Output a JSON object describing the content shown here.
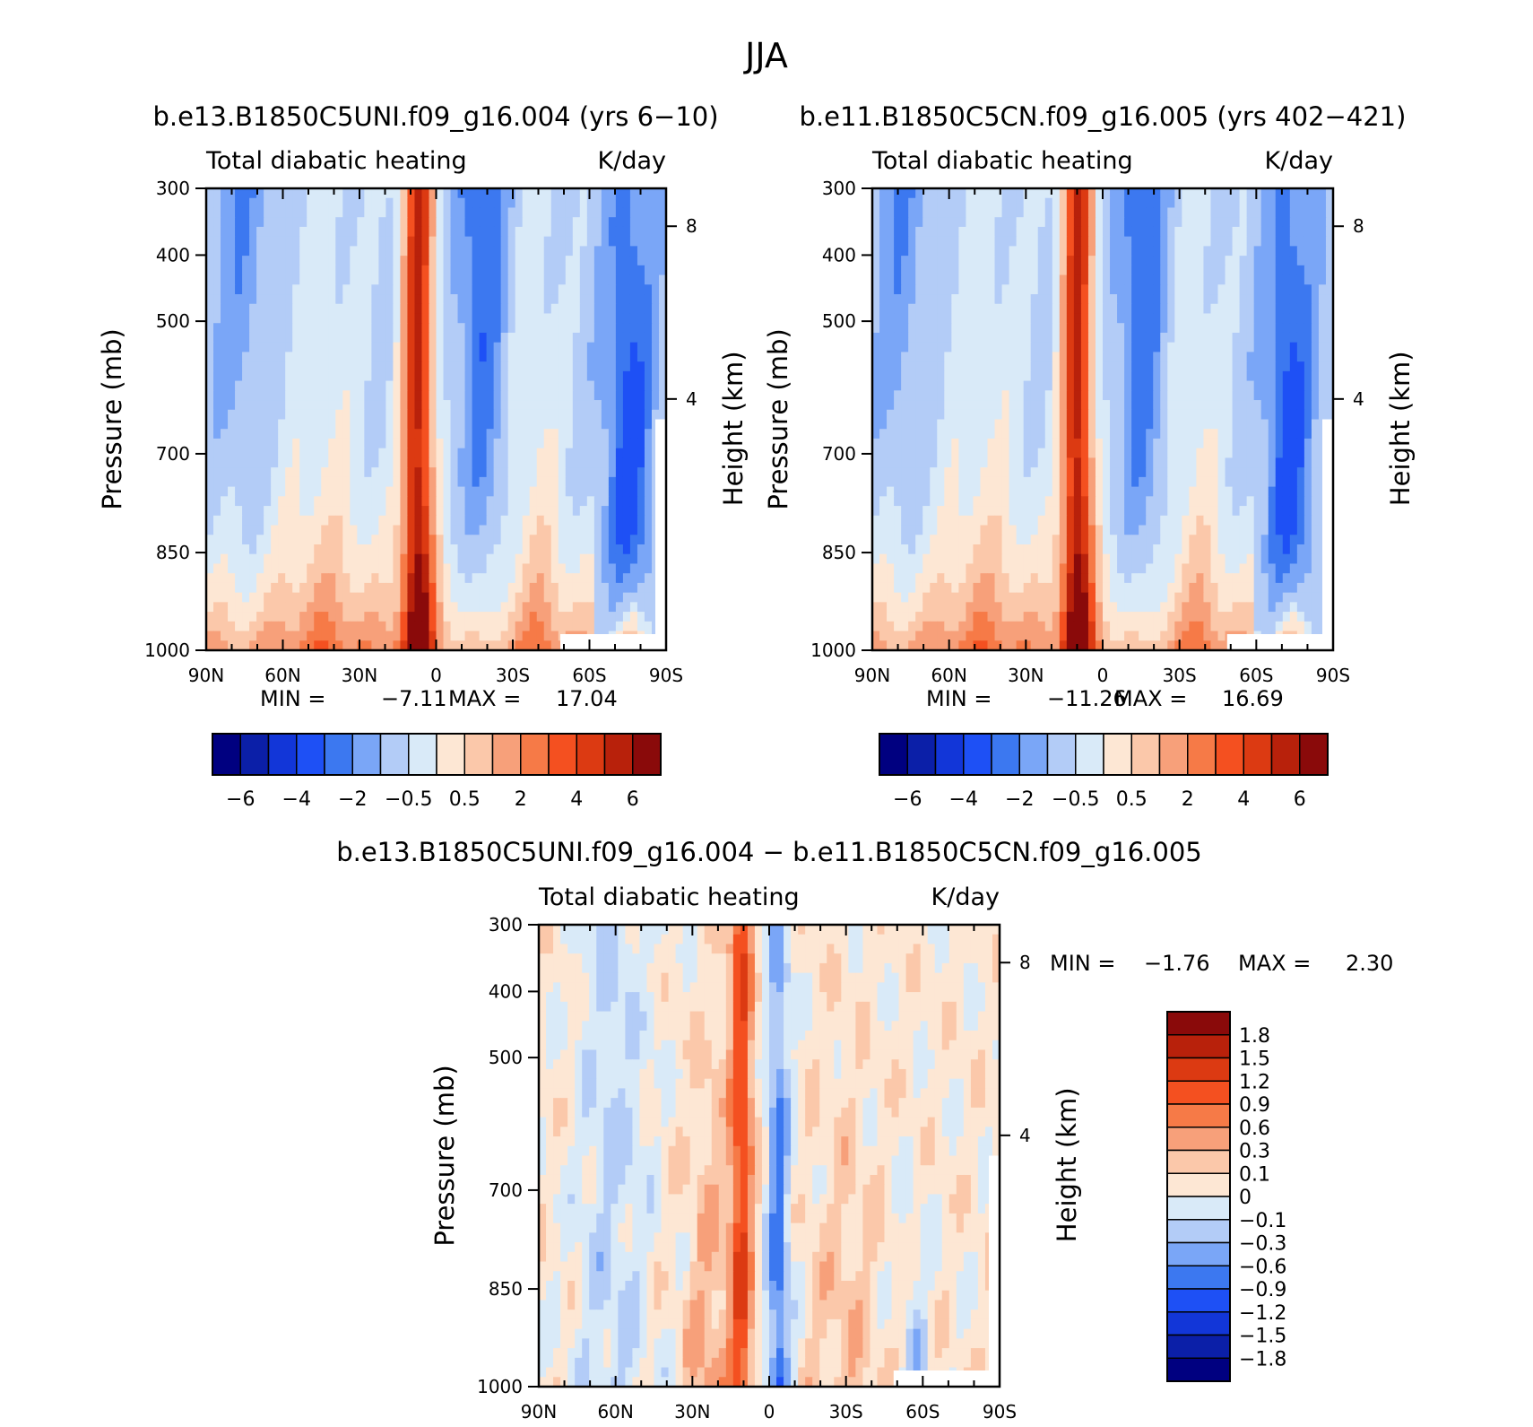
{
  "figure": {
    "title": "JJA"
  },
  "colorbar_top": {
    "labels": [
      "−6",
      "−4",
      "−2",
      "−0.5",
      "0.5",
      "2",
      "4",
      "6"
    ],
    "colors": [
      "#000080",
      "#0B1FA8",
      "#1236D8",
      "#1E50F5",
      "#3C78F0",
      "#7AA6F7",
      "#B3CCF7",
      "#D9EAF8",
      "#FDE7D4",
      "#FBC8AA",
      "#F7A07A",
      "#F67A47",
      "#F45020",
      "#DC3A12",
      "#B8210B",
      "#8A0A0A"
    ]
  },
  "colorbar_diff": {
    "labels": [
      "1.8",
      "1.5",
      "1.2",
      "0.9",
      "0.6",
      "0.3",
      "0.1",
      "0",
      "−0.1",
      "−0.3",
      "−0.6",
      "−0.9",
      "−1.2",
      "−1.5",
      "−1.8"
    ],
    "colors": [
      "#8A0A0A",
      "#B8210B",
      "#DC3A12",
      "#F45020",
      "#F67A47",
      "#F7A07A",
      "#FBC8AA",
      "#FDE7D4",
      "#D9EAF8",
      "#B3CCF7",
      "#7AA6F7",
      "#3C78F0",
      "#1E50F5",
      "#1236D8",
      "#0B1FA8",
      "#000080"
    ]
  },
  "chart_data": [
    {
      "type": "heatmap",
      "panel": "left",
      "case_title": "b.e13.B1850C5UNI.f09_g16.004 (yrs 6−10)",
      "left_title": "Total diabatic heating",
      "right_title": "K/day",
      "x_ticks": [
        "90N",
        "60N",
        "30N",
        "0",
        "30S",
        "60S",
        "90S"
      ],
      "y_ticks": [
        "300",
        "400",
        "500",
        "700",
        "850",
        "1000"
      ],
      "y2_ticks": [
        "8",
        "4"
      ],
      "ylabel": "Pressure (mb)",
      "y2label": "Height (km)",
      "xlim": [
        90,
        -90
      ],
      "ylim": [
        1000,
        300
      ],
      "min_label": "MIN =",
      "min_value": "−7.11",
      "max_label": "MAX =",
      "max_value": "17.04"
    },
    {
      "type": "heatmap",
      "panel": "right",
      "case_title": "b.e11.B1850C5CN.f09_g16.005 (yrs 402−421)",
      "left_title": "Total diabatic heating",
      "right_title": "K/day",
      "x_ticks": [
        "90N",
        "60N",
        "30N",
        "0",
        "30S",
        "60S",
        "90S"
      ],
      "y_ticks": [
        "300",
        "400",
        "500",
        "700",
        "850",
        "1000"
      ],
      "y2_ticks": [
        "8",
        "4"
      ],
      "ylabel": "Pressure (mb)",
      "y2label": "Height (km)",
      "xlim": [
        90,
        -90
      ],
      "ylim": [
        1000,
        300
      ],
      "min_label": "MIN =",
      "min_value": "−11.26",
      "max_label": "MAX =",
      "max_value": "16.69"
    },
    {
      "type": "heatmap",
      "panel": "difference",
      "case_title": "b.e13.B1850C5UNI.f09_g16.004 − b.e11.B1850C5CN.f09_g16.005",
      "left_title": "Total diabatic heating",
      "right_title": "K/day",
      "x_ticks": [
        "90N",
        "60N",
        "30N",
        "0",
        "30S",
        "60S",
        "90S"
      ],
      "y_ticks": [
        "300",
        "400",
        "500",
        "700",
        "850",
        "1000"
      ],
      "y2_ticks": [
        "8",
        "4"
      ],
      "ylabel": "Pressure (mb)",
      "y2label": "Height (km)",
      "xlim": [
        90,
        -90
      ],
      "ylim": [
        1000,
        300
      ],
      "min_label": "MIN =",
      "min_value": "−1.76",
      "max_label": "MAX =",
      "max_value": "2.30"
    }
  ]
}
